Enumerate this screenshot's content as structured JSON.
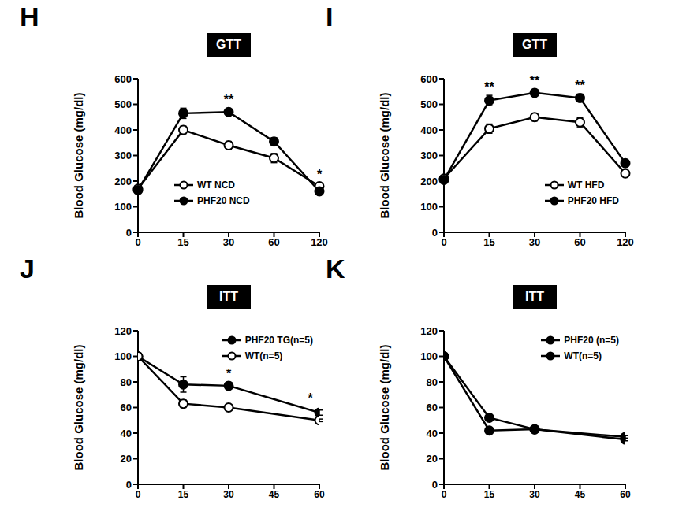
{
  "chart_data": [
    {
      "type": "line",
      "panel_label": "H",
      "title": "GTT",
      "y_label": "Blood Glucose (mg/dl)",
      "categories": [
        "0",
        "15",
        "30",
        "60",
        "120"
      ],
      "series": [
        {
          "name": "WT NCD",
          "color": "#000000",
          "marker": "circle-open",
          "values": [
            170,
            400,
            340,
            290,
            180
          ],
          "errors": [
            10,
            15,
            15,
            18,
            8
          ]
        },
        {
          "name": "PHF20 NCD",
          "color": "#000000",
          "marker": "circle",
          "values": [
            165,
            465,
            470,
            355,
            160
          ],
          "errors": [
            10,
            20,
            10,
            15,
            8
          ]
        }
      ],
      "ylim": [
        0,
        600
      ],
      "yticks": [
        0,
        100,
        200,
        300,
        400,
        500,
        600
      ],
      "legend": "lower center",
      "annotations": [
        {
          "x": "30",
          "y": 470,
          "text": "**"
        },
        {
          "x": "120",
          "y": 180,
          "text": "*"
        }
      ]
    },
    {
      "type": "line",
      "panel_label": "I",
      "title": "GTT",
      "y_label": "Blood Glucose (mg/dl)",
      "categories": [
        "0",
        "15",
        "30",
        "60",
        "120"
      ],
      "series": [
        {
          "name": "WT HFD",
          "color": "#000000",
          "marker": "circle-open",
          "values": [
            210,
            405,
            450,
            430,
            230
          ],
          "errors": [
            10,
            18,
            15,
            18,
            8
          ]
        },
        {
          "name": "PHF20  HFD",
          "color": "#000000",
          "marker": "circle",
          "values": [
            205,
            515,
            545,
            525,
            270
          ],
          "errors": [
            10,
            20,
            8,
            15,
            8
          ]
        }
      ],
      "ylim": [
        0,
        600
      ],
      "yticks": [
        0,
        100,
        200,
        300,
        400,
        500,
        600
      ],
      "legend": "lower right",
      "annotations": [
        {
          "x": "15",
          "y": 520,
          "text": "**"
        },
        {
          "x": "30",
          "y": 545,
          "text": "**"
        },
        {
          "x": "60",
          "y": 525,
          "text": "**"
        }
      ]
    },
    {
      "type": "line",
      "panel_label": "J",
      "title": "ITT",
      "y_label": "Blood Glucose (mg/dl)",
      "x": [
        0,
        15,
        30,
        60
      ],
      "series": [
        {
          "name": "PHF20 TG(n=5)",
          "color": "#000000",
          "marker": "circle",
          "values": [
            100,
            78,
            77,
            56
          ],
          "errors": [
            0,
            6,
            2,
            2
          ]
        },
        {
          "name": "WT(n=5)",
          "color": "#000000",
          "marker": "circle-open",
          "values": [
            100,
            63,
            60,
            50
          ],
          "errors": [
            0,
            3,
            2,
            1
          ]
        }
      ],
      "xlim": [
        0,
        60
      ],
      "xticks": [
        0,
        15,
        30,
        45,
        60
      ],
      "ylim": [
        0,
        120
      ],
      "yticks": [
        0,
        20,
        40,
        60,
        80,
        100,
        120
      ],
      "legend": "upper right",
      "annotations": [
        {
          "x": 30,
          "y": 77,
          "text": "*"
        },
        {
          "x": 57,
          "y": 58,
          "text": "*"
        }
      ]
    },
    {
      "type": "line",
      "panel_label": "K",
      "title": "ITT",
      "y_label": "Blood Glucose (mg/dl)",
      "x": [
        0,
        15,
        30,
        60
      ],
      "series": [
        {
          "name": "PHF20 (n=5)",
          "color": "#000000",
          "marker": "circle",
          "values": [
            100,
            52,
            43,
            37
          ],
          "errors": [
            0,
            2,
            1,
            1
          ]
        },
        {
          "name": "WT(n=5)",
          "color": "#000000",
          "marker": "circle",
          "values": [
            100,
            42,
            43,
            35
          ],
          "errors": [
            0,
            2,
            1,
            1
          ]
        }
      ],
      "xlim": [
        0,
        60
      ],
      "xticks": [
        0,
        15,
        30,
        45,
        60
      ],
      "ylim": [
        0,
        120
      ],
      "yticks": [
        0,
        20,
        40,
        60,
        80,
        100,
        120
      ],
      "legend": "upper right",
      "annotations": []
    }
  ]
}
